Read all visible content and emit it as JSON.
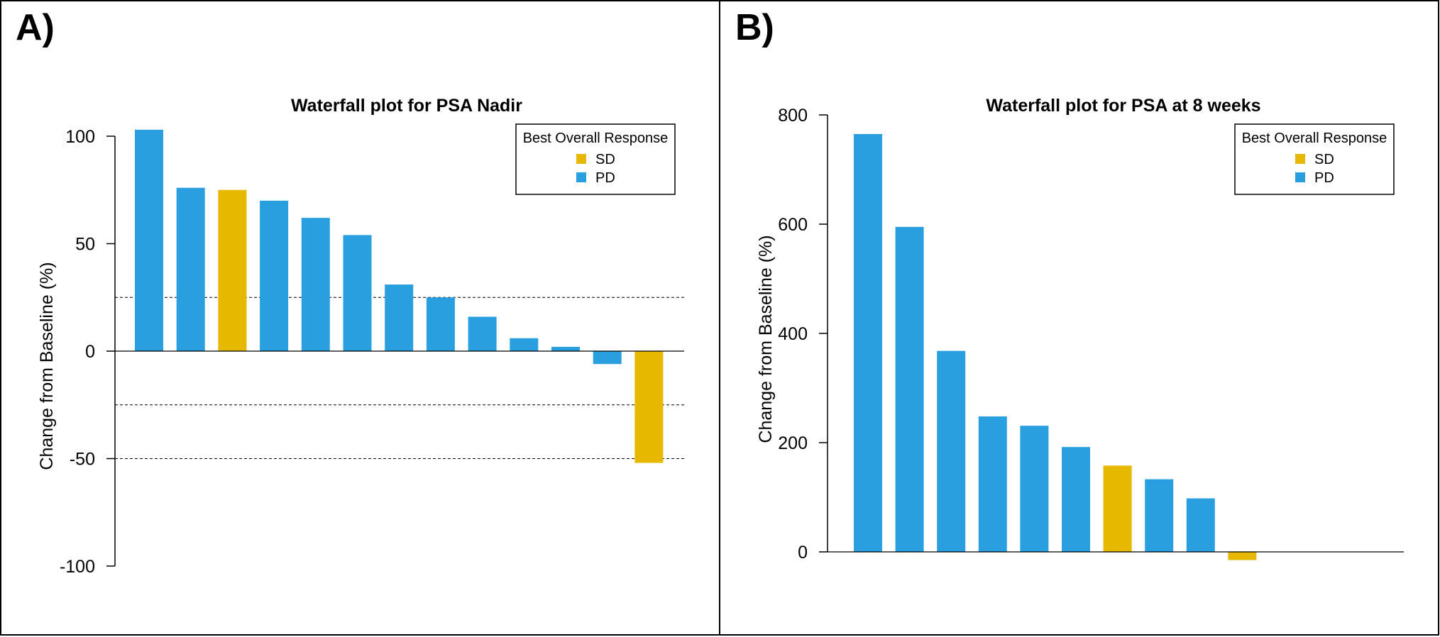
{
  "panels": [
    {
      "letter": "A)"
    },
    {
      "letter": "B)"
    }
  ],
  "colors": {
    "SD": "#E6B800",
    "PD": "#2A9FDF"
  },
  "chart_data": [
    {
      "type": "bar",
      "title": "Waterfall plot for PSA Nadir",
      "xlabel": "",
      "ylabel": "Change from Baseline (%)",
      "ylim": [
        -100,
        110
      ],
      "yticks": [
        100,
        50,
        0,
        -50,
        -100
      ],
      "yticks_labels": [
        "100",
        "50",
        "0",
        "-50",
        "-100"
      ],
      "reference_lines": [
        25,
        -25,
        -50
      ],
      "legend": {
        "title": "Best Overall Response",
        "placement": "top-right",
        "entries": [
          "SD",
          "PD"
        ]
      },
      "values": [
        103,
        76,
        75,
        70,
        62,
        54,
        31,
        25,
        16,
        6,
        2,
        -6,
        -52
      ],
      "groups": [
        "PD",
        "PD",
        "SD",
        "PD",
        "PD",
        "PD",
        "PD",
        "PD",
        "PD",
        "PD",
        "PD",
        "PD",
        "SD"
      ],
      "grid": false
    },
    {
      "type": "bar",
      "title": "Waterfall plot for PSA at 8 weeks",
      "xlabel": "",
      "ylabel": "Change from Baseline (%)",
      "ylim": [
        0,
        800
      ],
      "yticks": [
        800,
        600,
        400,
        200,
        0
      ],
      "yticks_labels": [
        "800",
        "600",
        "400",
        "200",
        "0"
      ],
      "reference_lines": [],
      "legend": {
        "title": "Best Overall Response",
        "placement": "top-right",
        "entries": [
          "SD",
          "PD"
        ]
      },
      "values": [
        765,
        595,
        368,
        248,
        231,
        192,
        158,
        133,
        98,
        -15
      ],
      "groups": [
        "PD",
        "PD",
        "PD",
        "PD",
        "PD",
        "PD",
        "SD",
        "PD",
        "PD",
        "SD"
      ],
      "grid": false
    }
  ]
}
